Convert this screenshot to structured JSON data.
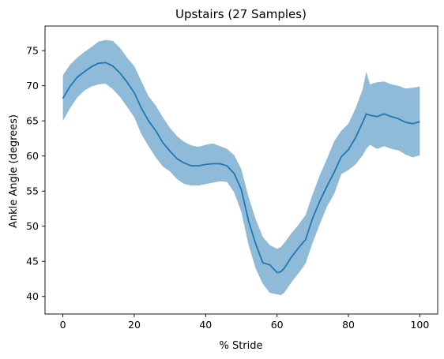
{
  "chart_data": {
    "type": "line",
    "title": "Upstairs (27 Samples)",
    "xlabel": "% Stride",
    "ylabel": "Ankle Angle (degrees)",
    "xlim": [
      -5,
      105
    ],
    "ylim": [
      37.5,
      78.5
    ],
    "xticks": [
      0,
      20,
      40,
      60,
      80,
      100
    ],
    "yticks": [
      40,
      45,
      50,
      55,
      60,
      65,
      70,
      75
    ],
    "colors": {
      "line": "#1f77b4",
      "band": "#8fbbd9",
      "axes": "#000000"
    },
    "series": [
      {
        "name": "mean",
        "x": [
          0,
          2,
          4,
          6,
          8,
          10,
          12,
          14,
          16,
          18,
          20,
          22,
          24,
          26,
          28,
          30,
          32,
          34,
          36,
          38,
          40,
          42,
          44,
          46,
          48,
          50,
          52,
          54,
          56,
          58,
          60,
          61,
          62,
          64,
          66,
          68,
          70,
          72,
          74,
          76,
          78,
          80,
          82,
          84,
          85,
          86,
          88,
          90,
          92,
          94,
          96,
          98,
          100
        ],
        "values": [
          68.2,
          69.9,
          71.2,
          72.0,
          72.7,
          73.2,
          73.3,
          72.8,
          71.8,
          70.5,
          69.0,
          66.8,
          65.0,
          63.6,
          61.9,
          60.7,
          59.6,
          59.0,
          58.6,
          58.6,
          58.8,
          58.9,
          58.9,
          58.6,
          57.5,
          55.2,
          50.8,
          47.5,
          44.8,
          44.5,
          43.4,
          43.5,
          44.0,
          45.6,
          46.9,
          48.1,
          51.2,
          53.6,
          55.7,
          57.7,
          59.9,
          60.9,
          62.6,
          64.8,
          66.0,
          65.8,
          65.6,
          66.0,
          65.6,
          65.3,
          64.8,
          64.6,
          64.9
        ],
        "upper": [
          71.5,
          73.0,
          74.0,
          74.8,
          75.5,
          76.3,
          76.5,
          76.4,
          75.4,
          74.0,
          72.8,
          70.6,
          68.5,
          67.2,
          65.5,
          64.0,
          62.8,
          62.0,
          61.5,
          61.3,
          61.6,
          61.8,
          61.4,
          61.0,
          60.1,
          58.1,
          54.2,
          51.0,
          48.5,
          47.3,
          46.8,
          47.0,
          47.6,
          49.0,
          50.2,
          51.6,
          54.6,
          57.3,
          59.6,
          62.1,
          63.6,
          64.6,
          66.8,
          69.5,
          72.0,
          70.2,
          70.5,
          70.6,
          70.2,
          70.0,
          69.6,
          69.7,
          69.9
        ],
        "lower": [
          65.0,
          66.8,
          68.3,
          69.3,
          69.9,
          70.2,
          70.3,
          69.5,
          68.4,
          67.0,
          65.5,
          63.1,
          61.4,
          59.8,
          58.5,
          57.8,
          56.7,
          56.0,
          55.8,
          55.8,
          56.0,
          56.2,
          56.4,
          56.3,
          54.8,
          52.0,
          47.4,
          44.0,
          41.8,
          40.5,
          40.3,
          40.2,
          40.5,
          42.0,
          43.3,
          44.7,
          47.7,
          50.3,
          52.8,
          54.6,
          57.4,
          58.0,
          58.8,
          60.1,
          61.0,
          61.6,
          61.0,
          61.4,
          61.0,
          60.8,
          60.2,
          59.8,
          60.1
        ]
      }
    ]
  }
}
